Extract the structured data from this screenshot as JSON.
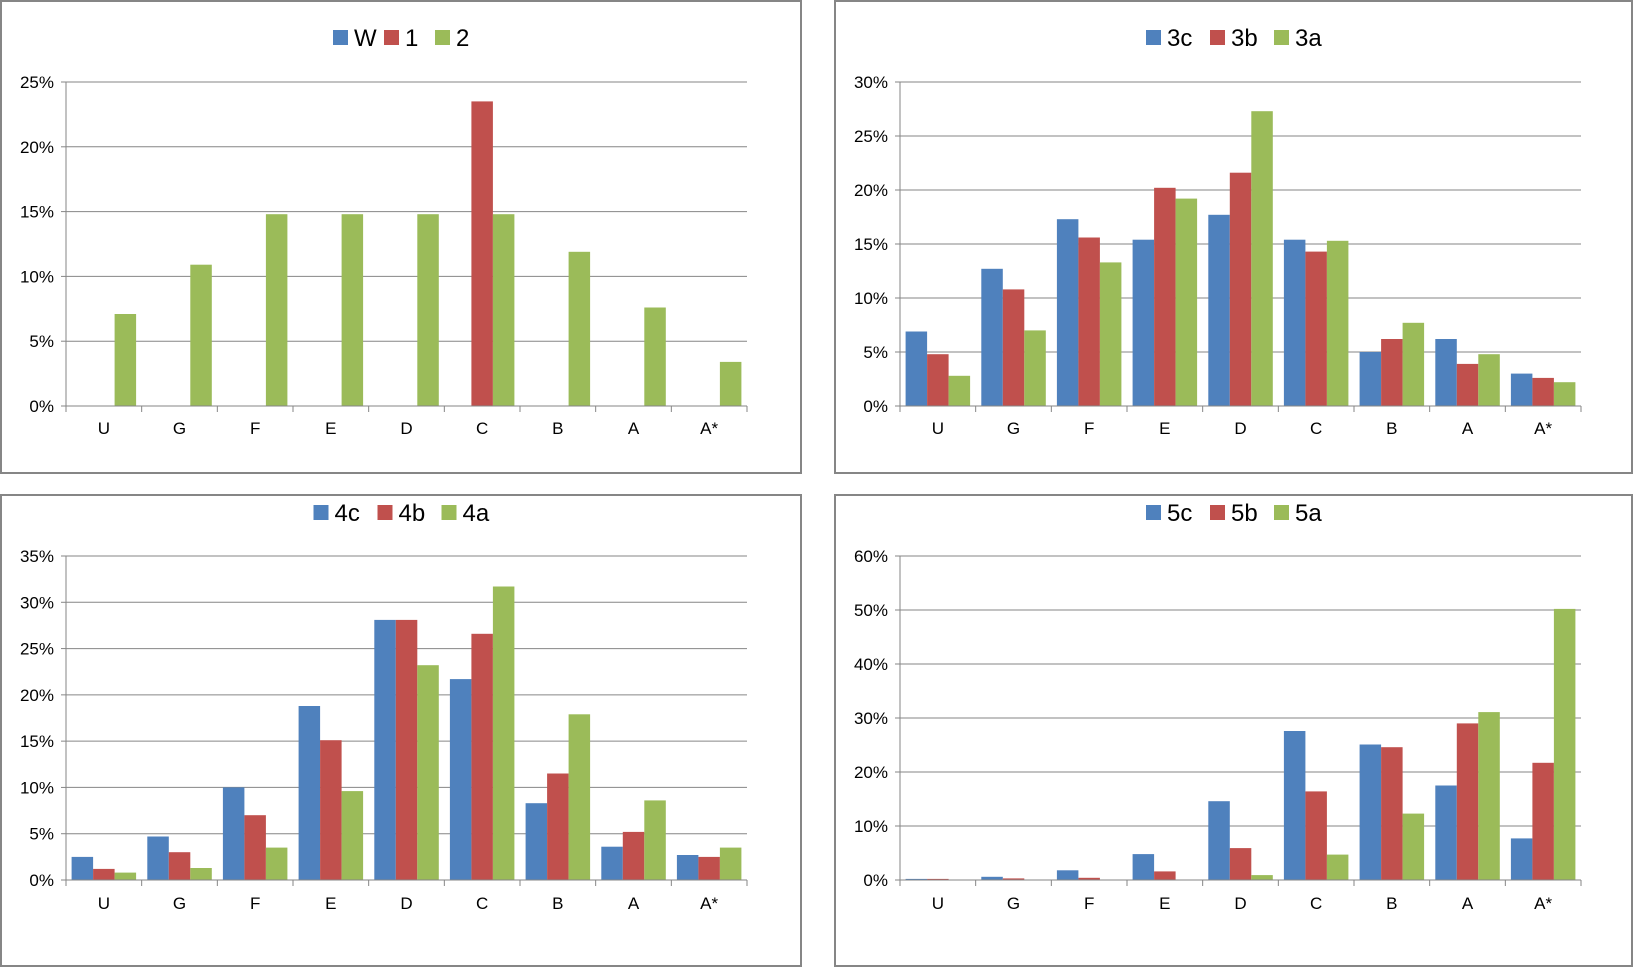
{
  "colors": {
    "series1": "#4F81BD",
    "series2": "#C0504D",
    "series3": "#9BBB59",
    "grid": "#868686"
  },
  "chart_data": [
    {
      "type": "bar",
      "categories": [
        "U",
        "G",
        "F",
        "E",
        "D",
        "C",
        "B",
        "A",
        "A*"
      ],
      "series": [
        {
          "name": "W",
          "values": [
            0,
            0,
            0,
            0,
            0,
            0,
            0,
            0,
            0
          ]
        },
        {
          "name": "1",
          "values": [
            0,
            0,
            0,
            0,
            0,
            23.5,
            0,
            0,
            0
          ]
        },
        {
          "name": "2",
          "values": [
            7.1,
            10.9,
            14.8,
            14.8,
            14.8,
            14.8,
            11.9,
            7.6,
            3.4
          ]
        }
      ],
      "yticks": [
        "0%",
        "5%",
        "10%",
        "15%",
        "20%",
        "25%"
      ],
      "ylim": [
        0,
        25
      ],
      "legend": "top",
      "grid": true
    },
    {
      "type": "bar",
      "categories": [
        "U",
        "G",
        "F",
        "E",
        "D",
        "C",
        "B",
        "A",
        "A*"
      ],
      "series": [
        {
          "name": "3c",
          "values": [
            6.9,
            12.7,
            17.3,
            15.4,
            17.7,
            15.4,
            5.0,
            6.2,
            3.0
          ]
        },
        {
          "name": "3b",
          "values": [
            4.8,
            10.8,
            15.6,
            20.2,
            21.6,
            14.3,
            6.2,
            3.9,
            2.6
          ]
        },
        {
          "name": "3a",
          "values": [
            2.8,
            7.0,
            13.3,
            19.2,
            27.3,
            15.3,
            7.7,
            4.8,
            2.2
          ]
        }
      ],
      "yticks": [
        "0%",
        "5%",
        "10%",
        "15%",
        "20%",
        "25%",
        "30%"
      ],
      "ylim": [
        0,
        30
      ],
      "legend": "top",
      "grid": true
    },
    {
      "type": "bar",
      "categories": [
        "U",
        "G",
        "F",
        "E",
        "D",
        "C",
        "B",
        "A",
        "A*"
      ],
      "series": [
        {
          "name": "4c",
          "values": [
            2.5,
            4.7,
            10.0,
            18.8,
            28.1,
            21.7,
            8.3,
            3.6,
            2.7
          ]
        },
        {
          "name": "4b",
          "values": [
            1.2,
            3.0,
            7.0,
            15.1,
            28.1,
            26.6,
            11.5,
            5.2,
            2.5
          ]
        },
        {
          "name": "4a",
          "values": [
            0.8,
            1.3,
            3.5,
            9.6,
            23.2,
            31.7,
            17.9,
            8.6,
            3.5
          ]
        }
      ],
      "yticks": [
        "0%",
        "5%",
        "10%",
        "15%",
        "20%",
        "25%",
        "30%",
        "35%"
      ],
      "ylim": [
        0,
        35
      ],
      "legend": "top",
      "grid": true
    },
    {
      "type": "bar",
      "categories": [
        "U",
        "G",
        "F",
        "E",
        "D",
        "C",
        "B",
        "A",
        "A*"
      ],
      "series": [
        {
          "name": "5c",
          "values": [
            0.2,
            0.6,
            1.8,
            4.8,
            14.6,
            27.6,
            25.1,
            17.5,
            7.7
          ]
        },
        {
          "name": "5b",
          "values": [
            0.2,
            0.3,
            0.4,
            1.6,
            5.9,
            16.4,
            24.6,
            29.0,
            21.7
          ]
        },
        {
          "name": "5a",
          "values": [
            0,
            0,
            0,
            0,
            0.9,
            4.7,
            12.3,
            31.1,
            50.2
          ]
        }
      ],
      "yticks": [
        "0%",
        "10%",
        "20%",
        "30%",
        "40%",
        "50%",
        "60%"
      ],
      "ylim": [
        0,
        60
      ],
      "legend": "top",
      "grid": true
    }
  ]
}
